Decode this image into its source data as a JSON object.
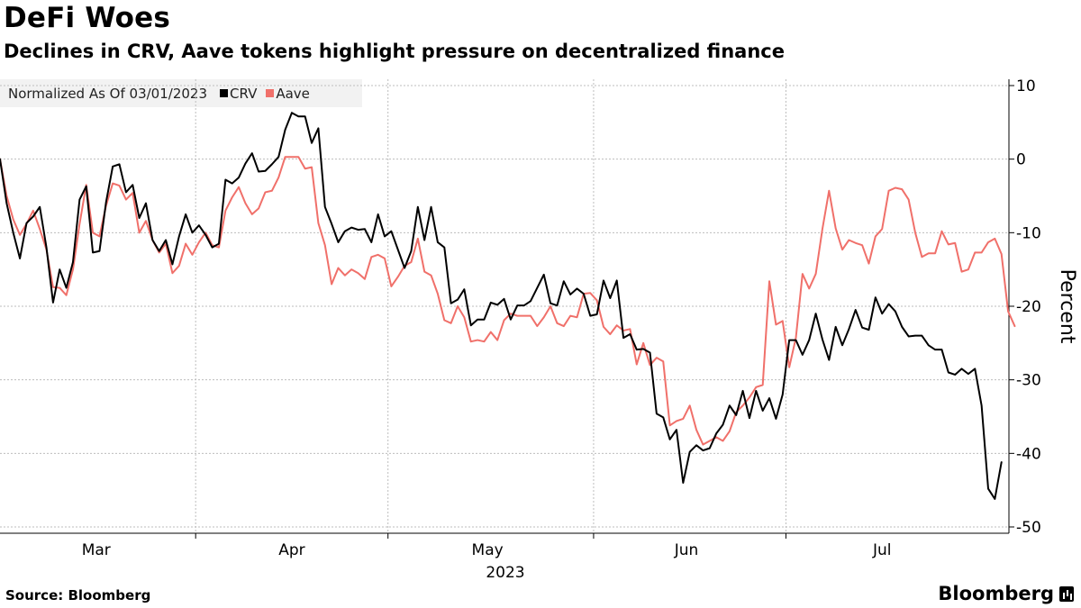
{
  "header": {
    "title": "DeFi Woes",
    "subtitle": "Declines in CRV, Aave tokens highlight pressure on decentralized finance"
  },
  "legend": {
    "label": "Normalized As Of 03/01/2023",
    "items": [
      {
        "name": "CRV",
        "color": "#000000"
      },
      {
        "name": "Aave",
        "color": "#f0706a"
      }
    ]
  },
  "footer": {
    "source": "Source: Bloomberg",
    "brand": "Bloomberg"
  },
  "chart_data": {
    "type": "line",
    "title": "DeFi Woes",
    "subtitle": "Declines in CRV, Aave tokens highlight pressure on decentralized finance",
    "ylabel": "Percent",
    "xlabel": "2023",
    "ylim": [
      -50,
      10
    ],
    "yticks": [
      10,
      0,
      -10,
      -20,
      -30,
      -40,
      -50
    ],
    "ytick_labels": [
      "10",
      "0",
      "-10",
      "-20",
      "-30",
      "-40",
      "-50"
    ],
    "xlim": [
      0,
      149
    ],
    "month_labels": [
      {
        "label": "Mar",
        "x": 14.5
      },
      {
        "label": "Apr",
        "x": 44
      },
      {
        "label": "May",
        "x": 73.5
      },
      {
        "label": "Jun",
        "x": 103.5
      },
      {
        "label": "Jul",
        "x": 133
      }
    ],
    "month_boundaries": [
      29.5,
      58.5,
      89.5,
      118.5
    ],
    "year_label": "2023",
    "legend_position": "top-left",
    "grid": true,
    "series": [
      {
        "name": "CRV",
        "color": "#000000",
        "values": [
          0,
          -6,
          -10,
          -13.5,
          -8.7,
          -7.8,
          -6.5,
          -12,
          -19.5,
          -15,
          -17.5,
          -14,
          -5.5,
          -3.7,
          -12.7,
          -12.5,
          -5.8,
          -1,
          -0.7,
          -4.5,
          -3.5,
          -8,
          -6,
          -11,
          -12.5,
          -11,
          -14.3,
          -10.5,
          -7.5,
          -10,
          -9,
          -10.3,
          -12,
          -11.5,
          -2.8,
          -3.3,
          -2.5,
          -0.6,
          0.8,
          -1.7,
          -1.6,
          -0.7,
          0.3,
          4,
          6.3,
          5.8,
          5.8,
          2.2,
          4.2,
          -6.5,
          -8.8,
          -11.3,
          -9.8,
          -9.3,
          -9.6,
          -9.5,
          -11.3,
          -7.5,
          -10.5,
          -9.8,
          -12.3,
          -14.8,
          -12.5,
          -6.5,
          -11,
          -6.5,
          -11.3,
          -12,
          -19.6,
          -19.1,
          -17.7,
          -22.6,
          -21.8,
          -21.8,
          -19.5,
          -19.8,
          -19,
          -21.8,
          -19.9,
          -19.9,
          -19.3,
          -17.5,
          -15.7,
          -19.6,
          -19.9,
          -16.6,
          -18.4,
          -17.6,
          -18.3,
          -21.3,
          -21.1,
          -16.5,
          -18.9,
          -16.5,
          -24.3,
          -23.8,
          -25.9,
          -25.8,
          -26.3,
          -34.6,
          -35.1,
          -38.1,
          -36.8,
          -44,
          -39.8,
          -38.9,
          -39.6,
          -39.3,
          -37.3,
          -36.1,
          -33.5,
          -34.8,
          -31.5,
          -35.2,
          -31.5,
          -34.2,
          -32.5,
          -35.3,
          -32,
          -24.6,
          -24.6,
          -26.6,
          -24.6,
          -21,
          -24.5,
          -27.3,
          -22.8,
          -25.3,
          -23.1,
          -20.5,
          -22.9,
          -23.2,
          -18.8,
          -21,
          -19.7,
          -20.7,
          -22.8,
          -24.1,
          -24,
          -24,
          -25.3,
          -25.9,
          -25.9,
          -29,
          -29.3,
          -28.5,
          -29.2,
          -28.5,
          -33.5,
          -44.8,
          -46.2,
          -41.2
        ]
      },
      {
        "name": "Aave",
        "color": "#f0706a",
        "values": [
          0,
          -5,
          -8.2,
          -10.3,
          -8.8,
          -7,
          -9.5,
          -12.3,
          -17.4,
          -17.5,
          -18.5,
          -15,
          -8.8,
          -3.5,
          -10,
          -10.5,
          -6.3,
          -3.3,
          -3.6,
          -5.5,
          -4.6,
          -10,
          -8.4,
          -11,
          -12.7,
          -11.5,
          -15.5,
          -14.5,
          -11.5,
          -13,
          -11.3,
          -10,
          -11.7,
          -12,
          -7,
          -5.2,
          -3.8,
          -6,
          -7.5,
          -6.7,
          -4.5,
          -4.3,
          -2.5,
          0.3,
          0.3,
          0.3,
          -1.3,
          -1.1,
          -8.7,
          -11.7,
          -17,
          -14.8,
          -15.8,
          -15,
          -15.5,
          -16.3,
          -13.3,
          -13,
          -13.5,
          -17.3,
          -16,
          -14.5,
          -14,
          -10.8,
          -15.3,
          -15.8,
          -18.3,
          -21.9,
          -22.3,
          -20,
          -21.5,
          -24.8,
          -24.6,
          -24.8,
          -23.5,
          -24.6,
          -21.9,
          -21,
          -21.3,
          -21.3,
          -21.3,
          -22.7,
          -21.5,
          -20,
          -22.3,
          -22.7,
          -21.3,
          -21.5,
          -18.3,
          -18.2,
          -19.2,
          -22.8,
          -23.8,
          -22.6,
          -23.3,
          -23.1,
          -27.9,
          -25,
          -28,
          -27,
          -27.5,
          -36.2,
          -35.6,
          -35.3,
          -33.5,
          -36.8,
          -38.8,
          -38.3,
          -37.8,
          -38.3,
          -37,
          -34.4,
          -33.5,
          -32.4,
          -31,
          -30.7,
          -16.6,
          -22.5,
          -22,
          -28.3,
          -24.3,
          -15.6,
          -17.6,
          -15.6,
          -9.5,
          -4.3,
          -9.4,
          -12.3,
          -11,
          -11.4,
          -11.7,
          -14.2,
          -10.5,
          -9.5,
          -4.3,
          -3.9,
          -4.1,
          -5.5,
          -10,
          -13.3,
          -12.8,
          -12.8,
          -9.8,
          -11.6,
          -11.4,
          -15.3,
          -15,
          -12.7,
          -12.7,
          -11.3,
          -10.8,
          -12.9,
          -20.7,
          -22.7
        ]
      }
    ]
  }
}
